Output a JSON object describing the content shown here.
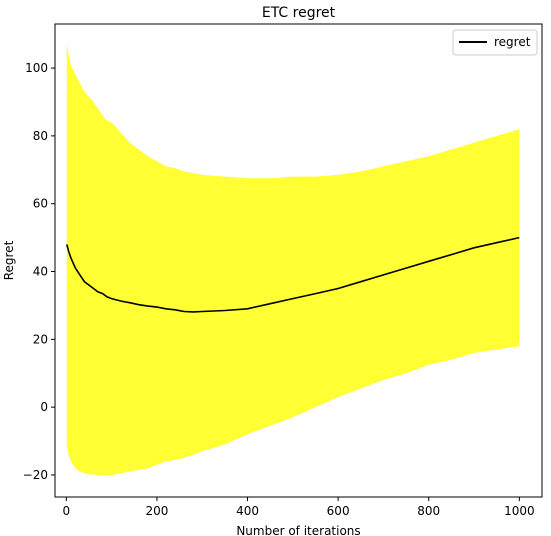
{
  "chart_data": {
    "type": "line",
    "title": "ETC regret",
    "xlabel": "Number of iterations",
    "ylabel": "Regret",
    "xlim": [
      -25,
      1050
    ],
    "ylim": [
      -26.5,
      113
    ],
    "xticks": [
      0,
      200,
      400,
      600,
      800,
      1000
    ],
    "yticks": [
      -20,
      0,
      20,
      40,
      60,
      80,
      100
    ],
    "legend": {
      "position": "top-right",
      "entries": [
        "regret"
      ]
    },
    "grid": false,
    "colors": {
      "line": "#000000",
      "band": "#ffff33"
    },
    "series": [
      {
        "name": "regret",
        "x": [
          1,
          5,
          10,
          20,
          30,
          40,
          50,
          60,
          70,
          80,
          90,
          100,
          120,
          140,
          160,
          180,
          200,
          220,
          240,
          260,
          280,
          300,
          350,
          400,
          450,
          500,
          550,
          600,
          650,
          700,
          750,
          800,
          850,
          900,
          950,
          1000
        ],
        "values": [
          48,
          46,
          44,
          41,
          39,
          37,
          36,
          35,
          34,
          33.5,
          32.5,
          32,
          31.3,
          30.8,
          30.2,
          29.8,
          29.5,
          29,
          28.7,
          28.2,
          28.1,
          28.2,
          28.5,
          29,
          30.5,
          32,
          33.5,
          35,
          37,
          39,
          41,
          43,
          45,
          47,
          48.5,
          50
        ]
      },
      {
        "name": "upper",
        "x": [
          1,
          5,
          10,
          20,
          30,
          40,
          50,
          60,
          70,
          80,
          90,
          100,
          120,
          140,
          160,
          180,
          200,
          220,
          240,
          260,
          280,
          300,
          350,
          400,
          450,
          500,
          550,
          600,
          650,
          700,
          750,
          800,
          850,
          900,
          950,
          1000
        ],
        "values": [
          107,
          104,
          101,
          98,
          95.5,
          93,
          91.5,
          90,
          88,
          86,
          84.5,
          84,
          81,
          78,
          76,
          74,
          72.5,
          71,
          70.5,
          69.5,
          69,
          68.5,
          68,
          67.5,
          67.5,
          68,
          68,
          68.5,
          69.5,
          71,
          72.5,
          74,
          76,
          78,
          80,
          82
        ]
      },
      {
        "name": "lower",
        "x": [
          1,
          5,
          10,
          20,
          30,
          40,
          50,
          60,
          70,
          80,
          90,
          100,
          120,
          140,
          160,
          180,
          200,
          220,
          240,
          260,
          280,
          300,
          350,
          400,
          450,
          500,
          550,
          600,
          650,
          700,
          750,
          800,
          850,
          900,
          950,
          1000
        ],
        "values": [
          -11,
          -14,
          -16,
          -18,
          -19,
          -19.5,
          -19.8,
          -19.8,
          -20,
          -20,
          -20,
          -20,
          -19.5,
          -19,
          -18.5,
          -18,
          -17,
          -16,
          -15.5,
          -15,
          -14,
          -13,
          -11,
          -8,
          -5.5,
          -3,
          0,
          3,
          5.5,
          8,
          10,
          12.5,
          14,
          16,
          17,
          18
        ]
      }
    ]
  }
}
